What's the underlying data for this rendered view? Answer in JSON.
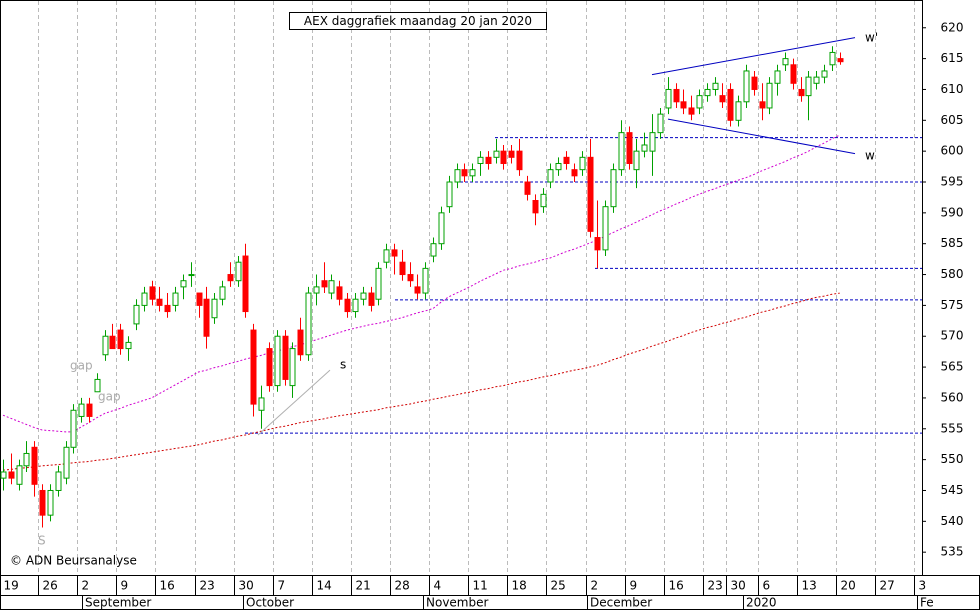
{
  "chart_data": {
    "type": "candlestick",
    "title": "AEX daggrafiek maandag 20 jan 2020",
    "credit": "© ADN Beursanalyse",
    "annotations": [
      "gap",
      "gap",
      "S"
    ],
    "months": [
      "September",
      "October",
      "November",
      "December",
      "2020",
      "Fe"
    ],
    "categories": [
      "19",
      null,
      null,
      null,
      null,
      "26",
      null,
      null,
      null,
      null,
      "2",
      null,
      null,
      null,
      null,
      "9",
      null,
      null,
      null,
      null,
      "16",
      null,
      null,
      null,
      null,
      "23",
      null,
      null,
      null,
      null,
      "30",
      null,
      null,
      null,
      null,
      "7",
      null,
      null,
      null,
      null,
      "14",
      null,
      null,
      null,
      null,
      "21",
      null,
      null,
      null,
      null,
      "28",
      null,
      null,
      null,
      null,
      "4",
      null,
      null,
      null,
      null,
      "11",
      null,
      null,
      null,
      null,
      "18",
      null,
      null,
      null,
      null,
      "25",
      null,
      null,
      null,
      null,
      "2",
      null,
      null,
      null,
      null,
      "9",
      null,
      null,
      null,
      null,
      "16",
      null,
      null,
      null,
      null,
      "23",
      null,
      null,
      "30",
      null,
      null,
      null,
      "6",
      null,
      null,
      null,
      null,
      "13",
      null,
      null,
      null,
      null,
      "20",
      null,
      null,
      null,
      null,
      "27",
      null,
      null,
      null,
      null,
      "3"
    ],
    "open": [
      547,
      548,
      546,
      549,
      552,
      545,
      541,
      545,
      547,
      552,
      557,
      559,
      561,
      567,
      570,
      571,
      568,
      572,
      575,
      578,
      576,
      575,
      575,
      578,
      580,
      577,
      576,
      573,
      576,
      580,
      579,
      583,
      571,
      558,
      568,
      562,
      570,
      562,
      571,
      567,
      577,
      579,
      577,
      578,
      576,
      574,
      576,
      577,
      576,
      582,
      584,
      582,
      580,
      578,
      577,
      583,
      585,
      591,
      595,
      597,
      596,
      598,
      599,
      599,
      600,
      600,
      600,
      595,
      592,
      591,
      595,
      597,
      599,
      597,
      597,
      599,
      586,
      584,
      591,
      597,
      603,
      597,
      600,
      600,
      603,
      607,
      610,
      608,
      607,
      607,
      609,
      610,
      609,
      610,
      605,
      608,
      612,
      608,
      607,
      611,
      614,
      614,
      610,
      609,
      611,
      612,
      614,
      615,
      null,
      null,
      null,
      null,
      null,
      null,
      null,
      null,
      null,
      null
    ],
    "high": [
      550,
      551,
      550,
      553,
      553,
      546,
      546,
      549,
      553,
      559,
      560,
      560,
      564,
      571,
      572,
      572,
      570,
      576,
      578,
      579,
      578,
      577,
      578,
      580,
      582,
      577,
      578,
      577,
      579,
      582,
      583,
      585,
      572,
      562,
      569,
      571,
      571,
      569,
      573,
      578,
      580,
      582,
      580,
      579,
      577,
      577,
      578,
      578,
      582,
      585,
      585,
      584,
      582,
      580,
      582,
      586,
      591,
      596,
      598,
      598,
      598,
      600,
      600,
      602,
      601,
      601,
      602,
      596,
      593,
      594,
      598,
      599,
      600,
      598,
      600,
      602,
      592,
      592,
      598,
      605,
      604,
      602,
      603,
      606,
      607,
      612,
      611,
      610,
      609,
      610,
      611,
      612,
      611,
      611,
      609,
      614,
      613,
      611,
      612,
      614,
      616,
      615,
      612,
      613,
      613,
      614,
      617,
      616,
      null,
      null,
      null,
      null,
      null,
      null,
      null,
      null,
      null,
      null
    ],
    "low": [
      545,
      546,
      545,
      548,
      544,
      539,
      540,
      544,
      546,
      551,
      556,
      556,
      561,
      566,
      568,
      567,
      566,
      571,
      574,
      575,
      574,
      573,
      574,
      576,
      578,
      573,
      568,
      572,
      575,
      578,
      578,
      573,
      557,
      555,
      561,
      561,
      562,
      560,
      566,
      566,
      575,
      577,
      576,
      575,
      573,
      573,
      575,
      574,
      575,
      581,
      580,
      579,
      578,
      576,
      576,
      582,
      584,
      590,
      594,
      595,
      595,
      596,
      597,
      598,
      597,
      598,
      596,
      592,
      588,
      590,
      594,
      596,
      597,
      595,
      596,
      586,
      581,
      583,
      590,
      596,
      597,
      594,
      599,
      596,
      602,
      606,
      607,
      606,
      605,
      606,
      608,
      609,
      607,
      604,
      604,
      607,
      609,
      605,
      606,
      609,
      613,
      610,
      608,
      605,
      610,
      611,
      613,
      614,
      null,
      null,
      null,
      null,
      null,
      null,
      null,
      null,
      null,
      null
    ],
    "close": [
      548,
      547,
      549,
      551,
      546,
      541,
      545,
      548,
      552,
      558,
      559,
      557,
      563,
      570,
      568,
      568,
      569,
      575,
      577,
      576,
      575,
      574,
      577,
      579,
      580,
      575,
      570,
      576,
      578,
      579,
      582,
      574,
      559,
      560,
      562,
      570,
      563,
      568,
      567,
      577,
      578,
      578,
      579,
      576,
      574,
      576,
      577,
      575,
      581,
      584,
      583,
      580,
      579,
      577,
      581,
      585,
      590,
      595,
      597,
      596,
      597,
      599,
      598,
      600,
      598,
      599,
      597,
      593,
      590,
      593,
      597,
      598,
      598,
      596,
      599,
      587,
      584,
      591,
      597,
      603,
      598,
      600,
      601,
      603,
      606,
      610,
      608,
      607,
      606,
      609,
      610,
      611,
      608,
      605,
      608,
      613,
      610,
      607,
      611,
      613,
      615,
      611,
      609,
      612,
      612,
      613,
      616,
      614.5,
      null,
      null,
      null,
      null,
      null,
      null,
      null,
      null,
      null,
      null
    ],
    "up_color": "#00a000",
    "down_color": "#ff0000",
    "series": [
      {
        "color": "#d000d0",
        "values": [
          557.2,
          556.7,
          556.2,
          555.7,
          555.2,
          554.8,
          554.7,
          554.6,
          554.5,
          554.5,
          555.3,
          556.0,
          556.8,
          557.5,
          557.9,
          558.3,
          558.8,
          559.2,
          559.6,
          560.0,
          560.7,
          561.4,
          562.1,
          562.8,
          563.5,
          564.2,
          564.5,
          564.9,
          565.2,
          565.6,
          565.9,
          566.3,
          566.6,
          566.9,
          567.3,
          567.6,
          567.9,
          568.3,
          568.6,
          569.0,
          569.4,
          569.8,
          570.2,
          570.6,
          571.0,
          571.3,
          571.6,
          571.9,
          572.1,
          572.4,
          572.7,
          573.0,
          573.4,
          573.8,
          574.1,
          574.5,
          575.5,
          576.4,
          577.0,
          577.6,
          578.2,
          578.9,
          579.5,
          580.1,
          580.7,
          581.0,
          581.4,
          581.7,
          582.0,
          582.4,
          582.7,
          583.2,
          583.7,
          584.1,
          584.6,
          585.1,
          585.6,
          586.2,
          586.8,
          587.4,
          587.9,
          588.5,
          589.1,
          589.7,
          590.3,
          590.8,
          591.4,
          591.9,
          592.5,
          593.0,
          593.5,
          593.9,
          594.4,
          594.8,
          595.3,
          595.7,
          596.2,
          596.8,
          597.3,
          597.8,
          598.3,
          598.9,
          599.4,
          600.0,
          600.7,
          601.3,
          602.0,
          602.6,
          null,
          null,
          null,
          null,
          null,
          null,
          null,
          null,
          null,
          null
        ]
      },
      {
        "color": "#d00000",
        "values": [
          548.3,
          548.4,
          548.6,
          548.7,
          548.8,
          549.0,
          549.1,
          549.2,
          549.3,
          549.5,
          549.6,
          549.7,
          549.9,
          550.0,
          550.2,
          550.4,
          550.6,
          550.8,
          551.0,
          551.2,
          551.4,
          551.6,
          551.8,
          552.0,
          552.2,
          552.4,
          552.7,
          553.0,
          553.2,
          553.5,
          553.8,
          554.0,
          554.3,
          554.6,
          554.9,
          555.2,
          555.4,
          555.7,
          556.0,
          556.2,
          556.4,
          556.6,
          556.9,
          557.1,
          557.3,
          557.5,
          557.7,
          557.9,
          558.1,
          558.4,
          558.6,
          558.8,
          559.0,
          559.3,
          559.5,
          559.8,
          560.0,
          560.3,
          560.5,
          560.8,
          561.0,
          561.3,
          561.5,
          561.8,
          562.0,
          562.3,
          562.6,
          562.8,
          563.1,
          563.4,
          563.6,
          563.9,
          564.2,
          564.5,
          564.7,
          565.0,
          565.3,
          565.7,
          566.2,
          566.6,
          567.1,
          567.5,
          567.9,
          568.4,
          568.8,
          569.2,
          569.7,
          570.1,
          570.6,
          571.0,
          571.4,
          571.7,
          572.1,
          572.4,
          572.8,
          573.1,
          573.5,
          573.9,
          574.2,
          574.6,
          574.9,
          575.3,
          575.6,
          576.0,
          576.3,
          576.5,
          576.8,
          577.0,
          null,
          null,
          null,
          null,
          null,
          null,
          null,
          null,
          null,
          null
        ]
      }
    ],
    "levels": [
      602.2,
      595,
      581,
      575.9,
      554.3
    ],
    "level_color": "#0000c0",
    "trendlines": [
      {
        "label": "w'",
        "values": [
          612.4,
          618.4
        ],
        "color": "#0000c0"
      },
      {
        "label": "w",
        "values": [
          605.2,
          599.6
        ],
        "color": "#0000c0"
      },
      {
        "label": "s",
        "values": [
          554.0,
          564.5
        ],
        "color": "#b0b0b0"
      }
    ],
    "ylim": [
      531.3,
      624.5
    ],
    "yticks": [
      535,
      540,
      545,
      550,
      555,
      560,
      565,
      570,
      575,
      580,
      585,
      590,
      595,
      600,
      605,
      610,
      615,
      620
    ],
    "grid": true
  }
}
